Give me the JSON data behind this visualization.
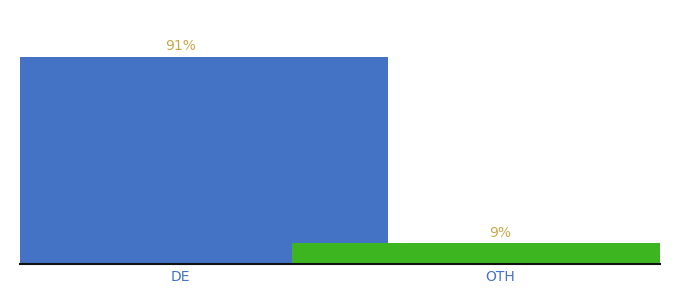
{
  "categories": [
    "DE",
    "OTH"
  ],
  "values": [
    91,
    9
  ],
  "bar_colors": [
    "#4472c4",
    "#3cb521"
  ],
  "label_color": "#c8a84b",
  "labels": [
    "91%",
    "9%"
  ],
  "background_color": "#ffffff",
  "bar_width": 0.65,
  "x_positions": [
    0.25,
    0.75
  ],
  "xlim": [
    0.0,
    1.0
  ],
  "ylim": [
    0,
    100
  ],
  "label_fontsize": 10,
  "tick_fontsize": 10,
  "tick_color": "#4472c4",
  "spine_color": "#111111"
}
